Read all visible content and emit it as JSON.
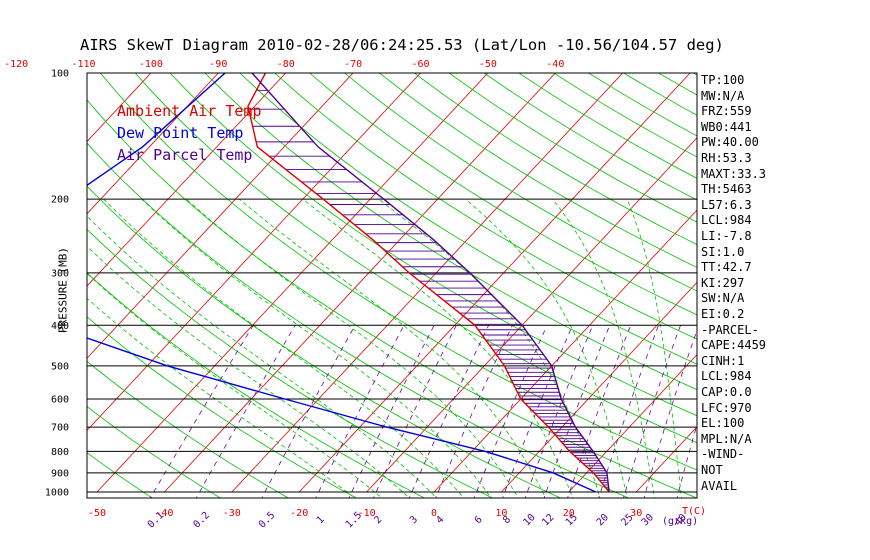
{
  "title": "AIRS SkewT Diagram 2010-02-28/06:24:25.53 (Lat/Lon -10.56/104.57 deg)",
  "legend": [
    {
      "label": "Ambient Air Temp",
      "color": "#e00000"
    },
    {
      "label": "Dew Point Temp",
      "color": "#0000e0"
    },
    {
      "label": "Air Parcel Temp",
      "color": "#500090"
    }
  ],
  "indices": [
    "TP:100",
    "MW:N/A",
    "FRZ:559",
    "WB0:441",
    "PW:40.00",
    "RH:53.3",
    "MAXT:33.3",
    "TH:5463",
    "L57:6.3",
    "LCL:984",
    "LI:-7.8",
    "SI:1.0",
    "TT:42.7",
    "KI:297",
    "SW:N/A",
    "EI:0.2",
    "-PARCEL-",
    "CAPE:4459",
    "CINH:1",
    "LCL:984",
    "CAP:0.0",
    "LFC:970",
    "EL:100",
    "MPL:N/A",
    "-WIND-",
    "NOT",
    "AVAIL"
  ],
  "chart_data": {
    "type": "line",
    "title": "AIRS SkewT Diagram 2010-02-28/06:24:25.53 (Lat/Lon -10.56/104.57 deg)",
    "ylabel": "PRESSURE (MB)",
    "xlabel": "T(C)",
    "mixing_ratio_label": "(g/kg)",
    "y_scale": "log",
    "ylim": [
      1000,
      100
    ],
    "y_ticks": [
      100,
      200,
      300,
      400,
      500,
      600,
      700,
      800,
      900,
      1000
    ],
    "x_ticks_bottom": [
      -50,
      -40,
      -30,
      -20,
      -10,
      0,
      10,
      20,
      30
    ],
    "x_ticks_top": [
      -120,
      -110,
      -100,
      -90,
      -80,
      -70,
      -60,
      -50,
      -40
    ],
    "mixing_ratio_labels": [
      "0.1",
      "0.2",
      "0.5",
      "1",
      "1.5",
      "2",
      "3",
      "4",
      "6",
      "8",
      "10",
      "12",
      "15",
      "20",
      "25",
      "30",
      "40"
    ],
    "series": [
      {
        "name": "Ambient Air Temp",
        "color": "#e00000",
        "pressure": [
          100,
          120,
          150,
          200,
          250,
          300,
          400,
          500,
          600,
          700,
          800,
          900,
          1000
        ],
        "temperature": [
          -83,
          -81,
          -74,
          -57,
          -44,
          -34,
          -17,
          -7,
          0,
          8,
          14.5,
          21,
          26
        ]
      },
      {
        "name": "Dew Point Temp",
        "color": "#0000e0",
        "pressure": [
          100,
          150,
          200,
          250,
          300,
          400,
          500,
          600,
          700,
          800,
          900,
          1000
        ],
        "temperature": [
          -89,
          -91,
          -95,
          -102,
          -100,
          -80,
          -57,
          -35,
          -16,
          2,
          15,
          24
        ]
      },
      {
        "name": "Air Parcel Temp",
        "color": "#500090",
        "pressure": [
          100,
          120,
          150,
          200,
          250,
          300,
          400,
          500,
          600,
          700,
          800,
          900,
          1000
        ],
        "temperature": [
          -85,
          -76,
          -65,
          -48,
          -35,
          -25,
          -10,
          0,
          6,
          12,
          18,
          23,
          26
        ]
      }
    ]
  }
}
